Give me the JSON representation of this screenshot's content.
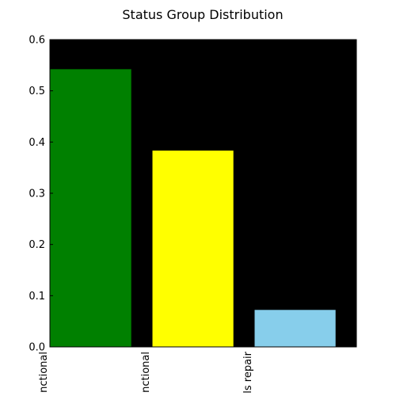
{
  "chart_data": {
    "type": "bar",
    "title": "Status Group Distribution",
    "xlabel": "",
    "ylabel": "",
    "ylim": [
      0,
      0.6
    ],
    "yticks": [
      0.0,
      0.1,
      0.2,
      0.3,
      0.4,
      0.5,
      0.6
    ],
    "ytick_labels": [
      "0.0",
      "0.1",
      "0.2",
      "0.3",
      "0.4",
      "0.5",
      "0.6"
    ],
    "categories": [
      "nctional",
      "nctional",
      "ls repair"
    ],
    "values": [
      0.543,
      0.384,
      0.073
    ],
    "colors": [
      "#008000",
      "#ffff00",
      "#87ceeb"
    ],
    "plot_background": "#000000",
    "grid": false,
    "legend": "none"
  }
}
